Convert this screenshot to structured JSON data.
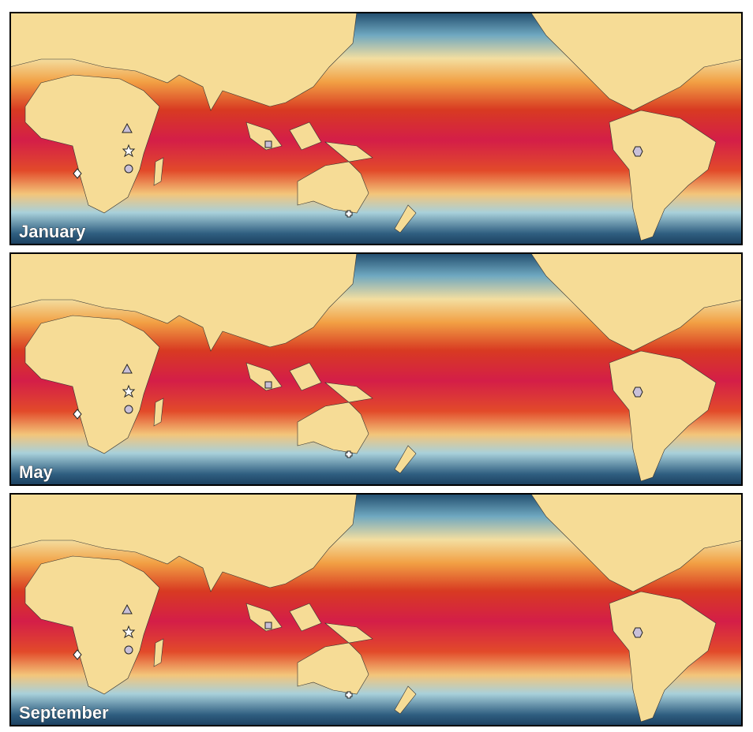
{
  "panels": [
    {
      "label": "January"
    },
    {
      "label": "May"
    },
    {
      "label": "September"
    }
  ]
}
